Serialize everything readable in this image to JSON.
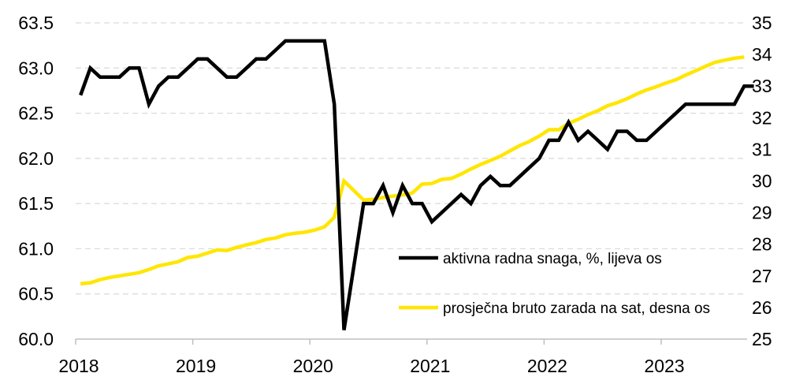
{
  "chart_data": {
    "type": "line",
    "x_tick_labels": [
      "2018",
      "2019",
      "2020",
      "2021",
      "2022",
      "2023"
    ],
    "y_left": {
      "ticks": [
        "60.0",
        "60.5",
        "61.0",
        "61.5",
        "62.0",
        "62.5",
        "63.0",
        "63.5"
      ],
      "lim": [
        60.0,
        63.5
      ]
    },
    "y_right": {
      "ticks": [
        "25",
        "26",
        "27",
        "28",
        "29",
        "30",
        "31",
        "32",
        "33",
        "34",
        "35"
      ],
      "lim": [
        25,
        35
      ]
    },
    "grid": "horizontal dashed",
    "legend_position": "lower-right",
    "series": [
      {
        "name": "aktivna radna snaga, %, lijeva os",
        "axis": "left",
        "color": "#000000",
        "start": "2018-01",
        "values": [
          62.7,
          63.0,
          62.9,
          62.9,
          62.9,
          63.0,
          63.0,
          62.6,
          62.8,
          62.9,
          62.9,
          63.0,
          63.1,
          63.1,
          63.0,
          62.9,
          62.9,
          63.0,
          63.1,
          63.1,
          63.2,
          63.3,
          63.3,
          63.3,
          63.3,
          63.3,
          62.6,
          60.1,
          60.8,
          61.5,
          61.5,
          61.7,
          61.4,
          61.7,
          61.5,
          61.5,
          61.3,
          61.4,
          61.5,
          61.6,
          61.5,
          61.7,
          61.8,
          61.7,
          61.7,
          61.8,
          61.9,
          62.0,
          62.2,
          62.2,
          62.4,
          62.2,
          62.3,
          62.2,
          62.1,
          62.3,
          62.3,
          62.2,
          62.2,
          62.3,
          62.4,
          62.5,
          62.6,
          62.6,
          62.6,
          62.6,
          62.6,
          62.6,
          62.8,
          62.8
        ]
      },
      {
        "name": "prosječna bruto zarada na sat, desna os",
        "axis": "right",
        "color": "#ffe600",
        "start": "2018-01",
        "values": [
          26.75,
          26.78,
          26.88,
          26.95,
          27.0,
          27.05,
          27.1,
          27.2,
          27.32,
          27.38,
          27.45,
          27.58,
          27.62,
          27.72,
          27.82,
          27.8,
          27.9,
          27.98,
          28.05,
          28.15,
          28.2,
          28.3,
          28.35,
          28.38,
          28.45,
          28.55,
          28.85,
          30.0,
          29.7,
          29.4,
          29.42,
          29.48,
          29.52,
          29.56,
          29.62,
          29.9,
          29.92,
          30.05,
          30.08,
          30.22,
          30.38,
          30.52,
          30.65,
          30.78,
          30.95,
          31.12,
          31.25,
          31.42,
          31.62,
          31.62,
          31.82,
          31.95,
          32.1,
          32.22,
          32.38,
          32.48,
          32.6,
          32.75,
          32.88,
          32.98,
          33.1,
          33.2,
          33.35,
          33.48,
          33.62,
          33.75,
          33.82,
          33.88,
          33.92
        ]
      }
    ]
  }
}
